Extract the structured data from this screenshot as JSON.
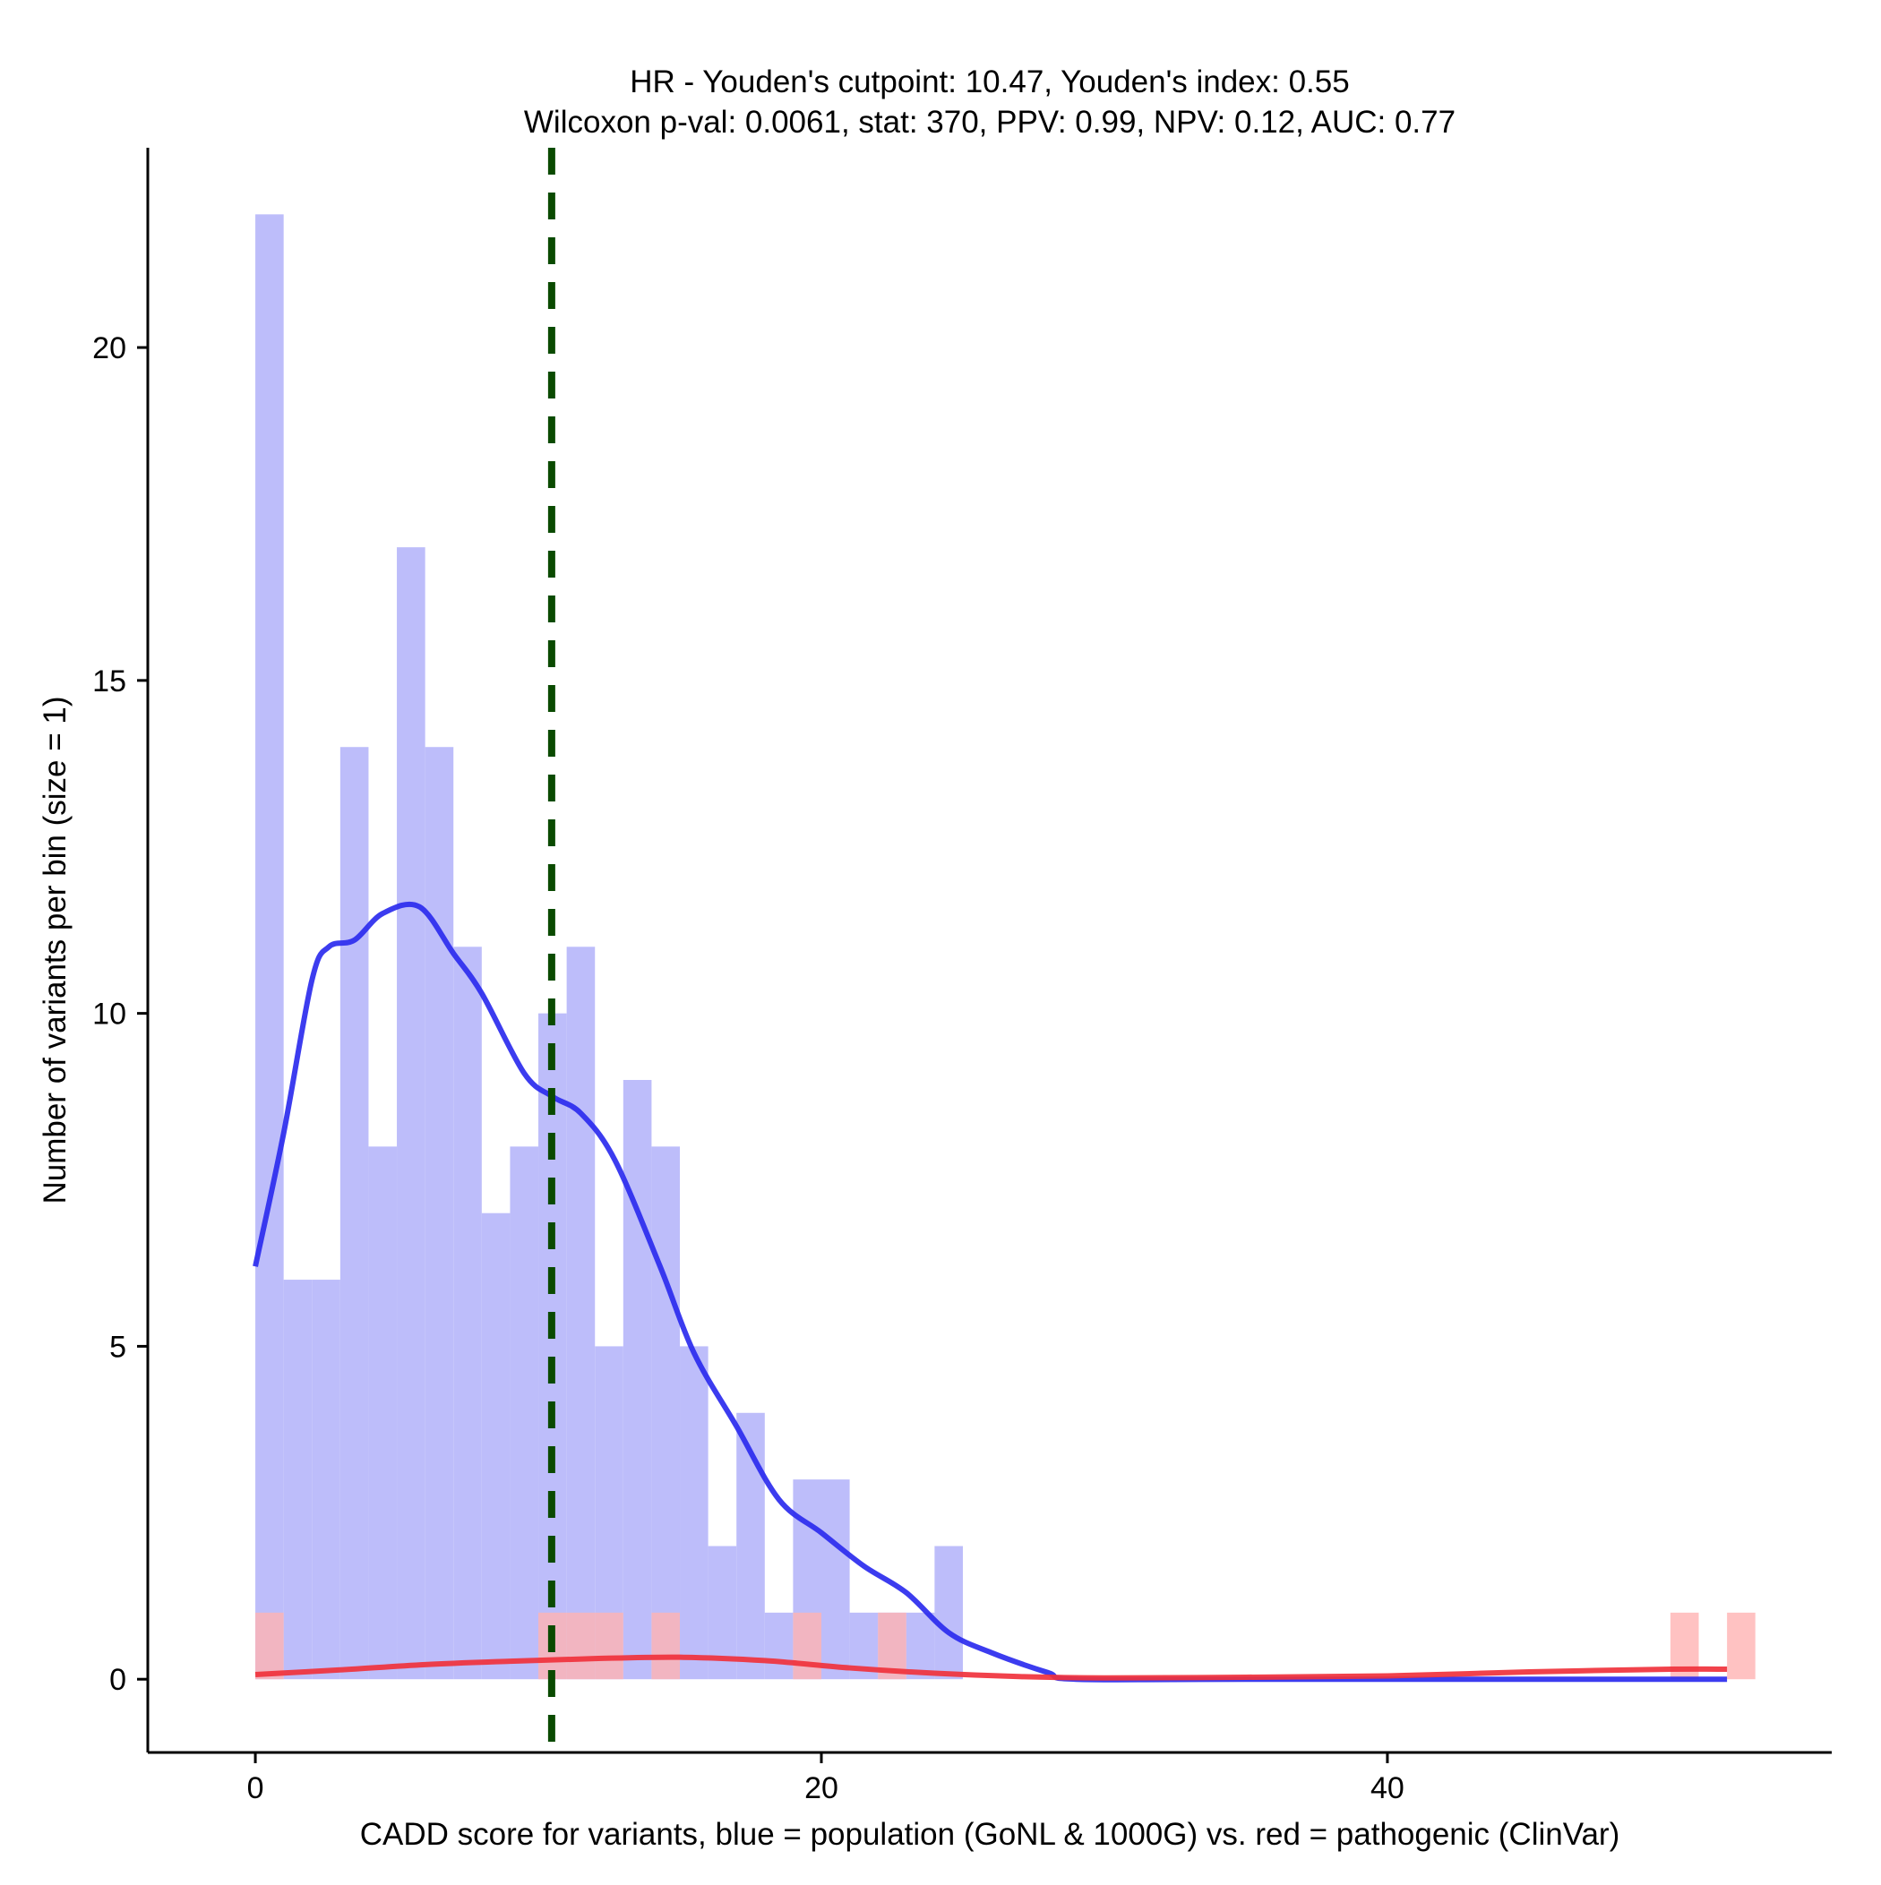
{
  "chart_data": {
    "type": "bar",
    "title_lines": [
      "HR - Youden's cutpoint: 10.47, Youden's index: 0.55",
      "Wilcoxon p-val: 0.0061, stat: 370, PPV: 0.99, NPV: 0.12, AUC: 0.77"
    ],
    "xlabel": "CADD score for variants, blue = population (GoNL & 1000G) vs. red = pathogenic (ClinVar)",
    "ylabel": "Number of variants per bin (size = 1)",
    "xlim": [
      -3.8,
      55.7
    ],
    "ylim": [
      -1.1,
      23.0
    ],
    "x_ticks": [
      0,
      20,
      40
    ],
    "y_ticks": [
      0,
      5,
      10,
      15,
      20
    ],
    "bin_width": 1,
    "series": [
      {
        "name": "population (GoNL & 1000G)",
        "color": "#bdbdfa",
        "bins": [
          {
            "x": 0,
            "value": 22
          },
          {
            "x": 1,
            "value": 6
          },
          {
            "x": 2,
            "value": 6
          },
          {
            "x": 3,
            "value": 14
          },
          {
            "x": 4,
            "value": 8
          },
          {
            "x": 5,
            "value": 17
          },
          {
            "x": 6,
            "value": 14
          },
          {
            "x": 7,
            "value": 11
          },
          {
            "x": 8,
            "value": 7
          },
          {
            "x": 9,
            "value": 8
          },
          {
            "x": 10,
            "value": 10
          },
          {
            "x": 11,
            "value": 11
          },
          {
            "x": 12,
            "value": 5
          },
          {
            "x": 13,
            "value": 9
          },
          {
            "x": 14,
            "value": 8
          },
          {
            "x": 15,
            "value": 5
          },
          {
            "x": 16,
            "value": 2
          },
          {
            "x": 17,
            "value": 4
          },
          {
            "x": 18,
            "value": 1
          },
          {
            "x": 19,
            "value": 3
          },
          {
            "x": 20,
            "value": 3
          },
          {
            "x": 21,
            "value": 1
          },
          {
            "x": 22,
            "value": 1
          },
          {
            "x": 23,
            "value": 1
          },
          {
            "x": 24,
            "value": 2
          }
        ]
      },
      {
        "name": "pathogenic (ClinVar)",
        "color": "#ffb3b3",
        "bins": [
          {
            "x": 0,
            "value": 1
          },
          {
            "x": 10,
            "value": 1
          },
          {
            "x": 11,
            "value": 1
          },
          {
            "x": 12,
            "value": 1
          },
          {
            "x": 14,
            "value": 1
          },
          {
            "x": 19,
            "value": 1
          },
          {
            "x": 22,
            "value": 1
          },
          {
            "x": 50,
            "value": 1
          },
          {
            "x": 52,
            "value": 1
          }
        ]
      }
    ],
    "density_lines": [
      {
        "name": "population density",
        "color": "#2b2bee",
        "points": [
          [
            0,
            6.2
          ],
          [
            1,
            8.2
          ],
          [
            2,
            10.5
          ],
          [
            2.6,
            11.0
          ],
          [
            3.5,
            11.1
          ],
          [
            4.5,
            11.5
          ],
          [
            5.8,
            11.6
          ],
          [
            7,
            10.9
          ],
          [
            8,
            10.3
          ],
          [
            9.5,
            9.1
          ],
          [
            10.5,
            8.75
          ],
          [
            11.5,
            8.5
          ],
          [
            12.7,
            7.8
          ],
          [
            14.3,
            6.2
          ],
          [
            15.5,
            4.9
          ],
          [
            17,
            3.8
          ],
          [
            18.5,
            2.7
          ],
          [
            20,
            2.2
          ],
          [
            21.5,
            1.7
          ],
          [
            23,
            1.3
          ],
          [
            24.5,
            0.7
          ],
          [
            26,
            0.4
          ],
          [
            28,
            0.1
          ],
          [
            29,
            0.0
          ],
          [
            35,
            0.0
          ],
          [
            52,
            0.0
          ]
        ]
      },
      {
        "name": "pathogenic density",
        "color": "#f0323c",
        "points": [
          [
            0,
            0.07
          ],
          [
            3,
            0.14
          ],
          [
            6,
            0.22
          ],
          [
            9,
            0.27
          ],
          [
            12,
            0.31
          ],
          [
            15,
            0.33
          ],
          [
            18,
            0.28
          ],
          [
            21,
            0.17
          ],
          [
            24,
            0.09
          ],
          [
            27,
            0.04
          ],
          [
            30,
            0.02
          ],
          [
            35,
            0.03
          ],
          [
            40,
            0.05
          ],
          [
            45,
            0.11
          ],
          [
            50,
            0.15
          ],
          [
            52,
            0.15
          ]
        ]
      }
    ],
    "cutpoint": {
      "x": 10.47,
      "color": "#0a4a00",
      "style": "dashed"
    }
  }
}
